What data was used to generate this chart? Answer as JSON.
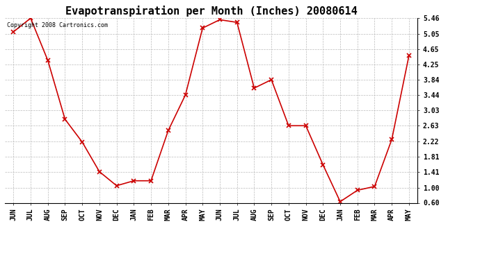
{
  "title": "Evapotranspiration per Month (Inches) 20080614",
  "copyright_text": "Copyright 2008 Cartronics.com",
  "months": [
    "JUN",
    "JUL",
    "AUG",
    "SEP",
    "OCT",
    "NOV",
    "DEC",
    "JAN",
    "FEB",
    "MAR",
    "APR",
    "MAY",
    "JUN",
    "JUL",
    "AUG",
    "SEP",
    "OCT",
    "NOV",
    "DEC",
    "JAN",
    "FEB",
    "MAR",
    "APR",
    "MAY"
  ],
  "values": [
    5.1,
    5.46,
    4.35,
    2.8,
    2.2,
    1.42,
    1.05,
    1.18,
    1.18,
    2.5,
    3.44,
    5.2,
    5.42,
    5.35,
    3.62,
    3.84,
    2.63,
    2.63,
    1.6,
    0.63,
    0.93,
    1.03,
    2.27,
    4.48
  ],
  "yticks": [
    0.6,
    1.0,
    1.41,
    1.81,
    2.22,
    2.63,
    3.03,
    3.44,
    3.84,
    4.25,
    4.65,
    5.05,
    5.46
  ],
  "line_color": "#cc0000",
  "marker": "x",
  "bg_color": "#ffffff",
  "grid_color": "#bbbbbb",
  "title_fontsize": 11,
  "tick_fontsize": 7,
  "copyright_fontsize": 6,
  "ylim": [
    0.6,
    5.46
  ]
}
